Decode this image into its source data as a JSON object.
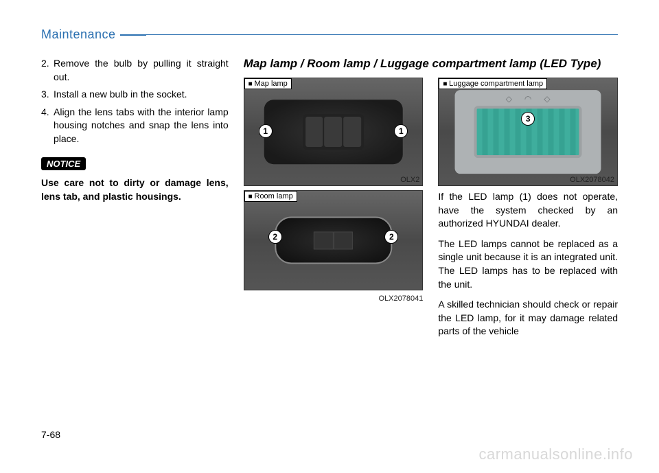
{
  "header": {
    "section_title": "Maintenance",
    "accent_color": "#2a6fb0"
  },
  "left_column": {
    "steps": [
      {
        "num": "2.",
        "text": "Remove the bulb by pulling it straight out."
      },
      {
        "num": "3.",
        "text": "Install a new bulb in the socket."
      },
      {
        "num": "4.",
        "text": "Align the lens tabs with the interior lamp housing notches and snap the lens into place."
      }
    ],
    "notice_label": "NOTICE",
    "notice_text": "Use care not to dirty or damage lens, lens tab, and plastic housings."
  },
  "mid_right_heading": "Map lamp / Room lamp / Luggage compartment lamp (LED Type)",
  "figures": {
    "map": {
      "label": "Map lamp",
      "code": "OLX2",
      "callouts": [
        "1",
        "1"
      ]
    },
    "room": {
      "label": "Room lamp",
      "code": "OLX2078041",
      "callouts": [
        "2",
        "2"
      ]
    },
    "luggage": {
      "label": "Luggage compartment lamp",
      "code": "OLX2078042",
      "callouts": [
        "3"
      ]
    }
  },
  "right_column": {
    "paras": [
      "If the LED lamp (1) does not operate, have the system checked by an authorized HYUNDAI dealer.",
      "The LED lamps cannot be replaced as a single unit because it is an integrated unit. The LED lamps has to be replaced with the unit.",
      "A skilled technician should check or repair the LED lamp, for it may damage related parts of the vehicle"
    ]
  },
  "footer": {
    "page_num": "7-68",
    "watermark": "carmanualsonline.info"
  },
  "styles": {
    "body_fontsize": 14,
    "heading_fontsize": 17,
    "fig_label_fontsize": 11,
    "background_color": "#ffffff",
    "text_color": "#000000",
    "watermark_color": "#d8d8d8"
  }
}
